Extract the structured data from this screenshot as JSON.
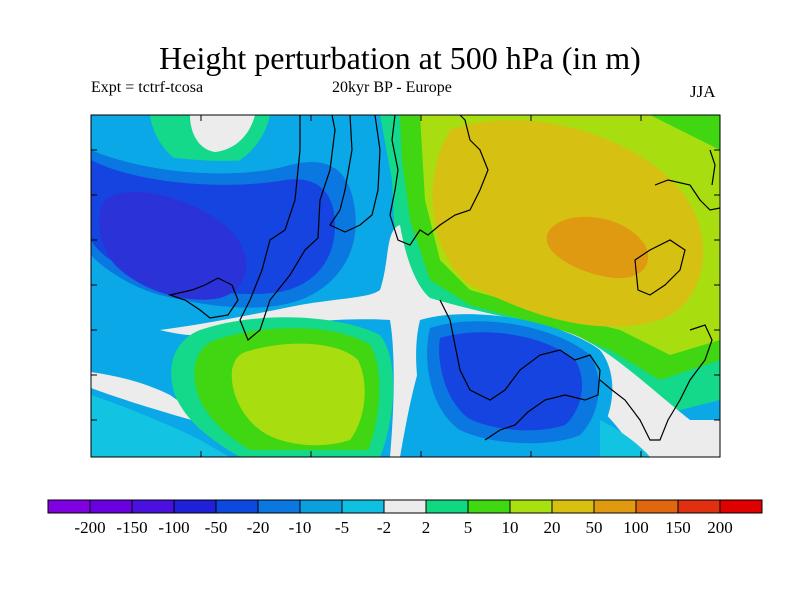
{
  "title": "Height perturbation at 500 hPa (in m)",
  "experiment": "Expt = tctrf-tcosa",
  "period_region": "20kyr BP - Europe",
  "season": "JJA",
  "colorbar": {
    "labels": [
      "-200",
      "-150",
      "-100",
      "-50",
      "-20",
      "-10",
      "-5",
      "-2",
      "2",
      "5",
      "10",
      "20",
      "50",
      "100",
      "150",
      "200"
    ],
    "colors": [
      "#7f00e0",
      "#6a00e0",
      "#4a10e0",
      "#2020d8",
      "#0d48e0",
      "#0a78e0",
      "#0aa0e0",
      "#10c0e0",
      "#ececec",
      "#10d880",
      "#40d810",
      "#a8e010",
      "#d8c010",
      "#e09a10",
      "#e06610",
      "#e03010",
      "#e00000"
    ]
  },
  "map_colors": {
    "very_neg": "#2a32d8",
    "strong_neg": "#1544e0",
    "neg": "#0a78e0",
    "weak_neg": "#0aa8e6",
    "near_zero_neg": "#12c4e2",
    "near_zero": "#ececec",
    "weak_pos": "#14d88a",
    "pos": "#40d612",
    "mid_pos": "#a8de10",
    "strong_pos": "#d6c012",
    "very_pos": "#e09a12",
    "coast": "#000000"
  }
}
